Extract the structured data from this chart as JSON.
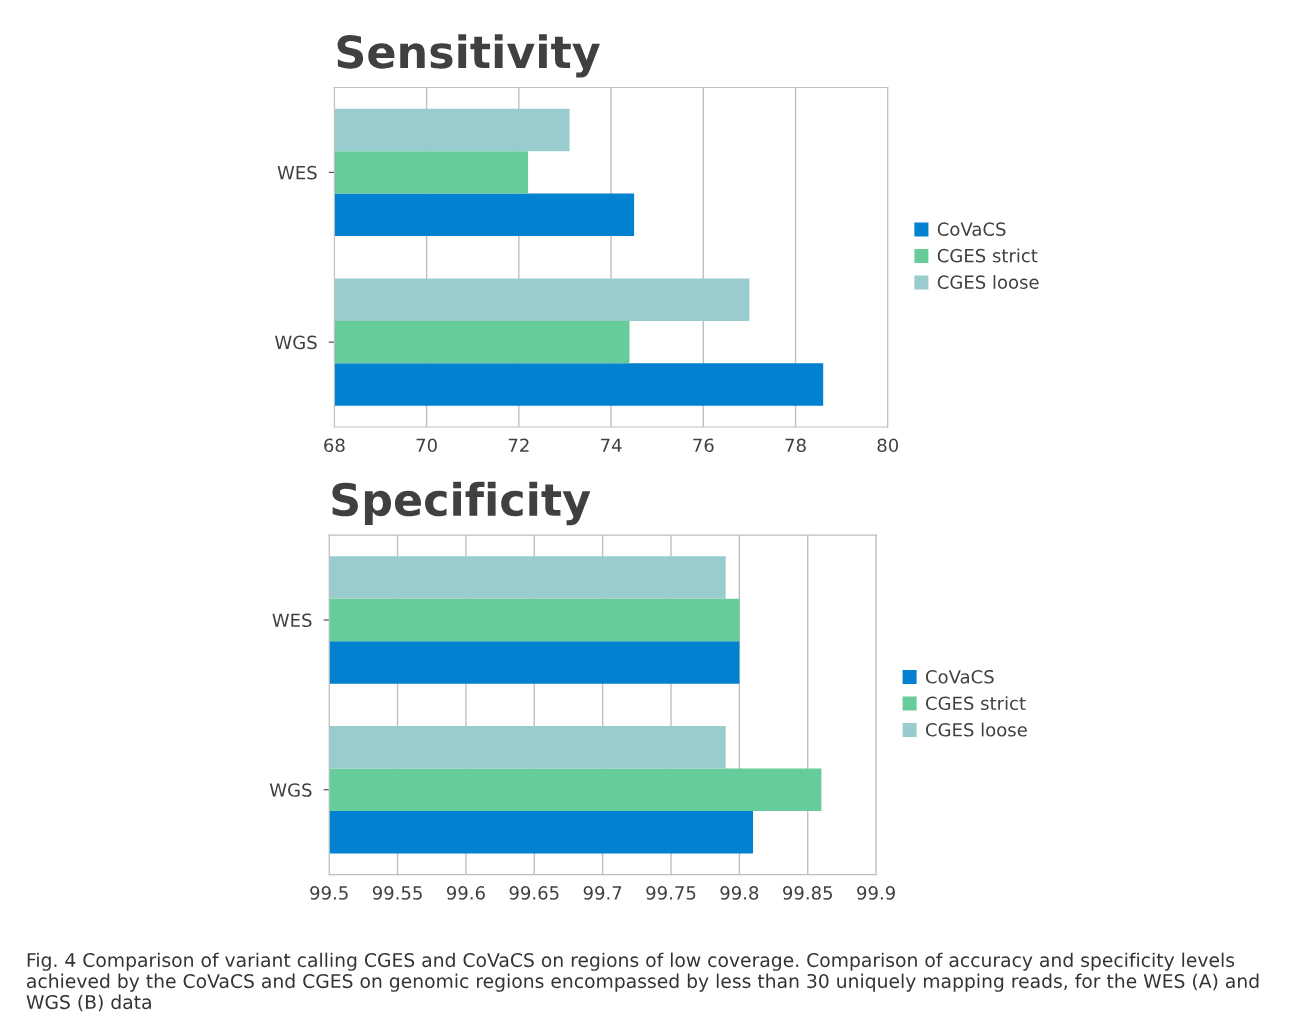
{
  "chart_data": [
    {
      "type": "bar",
      "orientation": "horizontal",
      "title": "Sensitivity",
      "categories": [
        "WES",
        "WGS"
      ],
      "series": [
        {
          "name": "CoVaCS",
          "color": "#0281d1",
          "values": [
            74.5,
            78.6
          ]
        },
        {
          "name": "CGES strict",
          "color": "#66cc99",
          "values": [
            72.2,
            74.4
          ]
        },
        {
          "name": "CGES loose",
          "color": "#99cccc",
          "values": [
            73.1,
            77.0
          ]
        }
      ],
      "xlim": [
        68,
        80
      ],
      "xticks": [
        68,
        70,
        72,
        74,
        76,
        78,
        80
      ],
      "grid": "x",
      "legend": "right"
    },
    {
      "type": "bar",
      "orientation": "horizontal",
      "title": "Specificity",
      "categories": [
        "WES",
        "WGS"
      ],
      "series": [
        {
          "name": "CoVaCS",
          "color": "#0281d1",
          "values": [
            99.8,
            99.81
          ]
        },
        {
          "name": "CGES strict",
          "color": "#66cc99",
          "values": [
            99.8,
            99.86
          ]
        },
        {
          "name": "CGES loose",
          "color": "#99cccc",
          "values": [
            99.79,
            99.79
          ]
        }
      ],
      "xlim": [
        99.5,
        99.9
      ],
      "xticks": [
        99.5,
        99.55,
        99.6,
        99.65,
        99.7,
        99.75,
        99.8,
        99.85,
        99.9
      ],
      "grid": "x",
      "legend": "right",
      "annotations": [
        "Fig. 4 Comparison of variant calling CGES and CoVaCS on regions of low coverage. Comparison of accuracy and specificity levels achieved by the CoVaCS and CGES on genomic regions encompassed by less than 30 uniquely mapping reads, for the WES (A) and WGS (B) data"
      ]
    }
  ]
}
